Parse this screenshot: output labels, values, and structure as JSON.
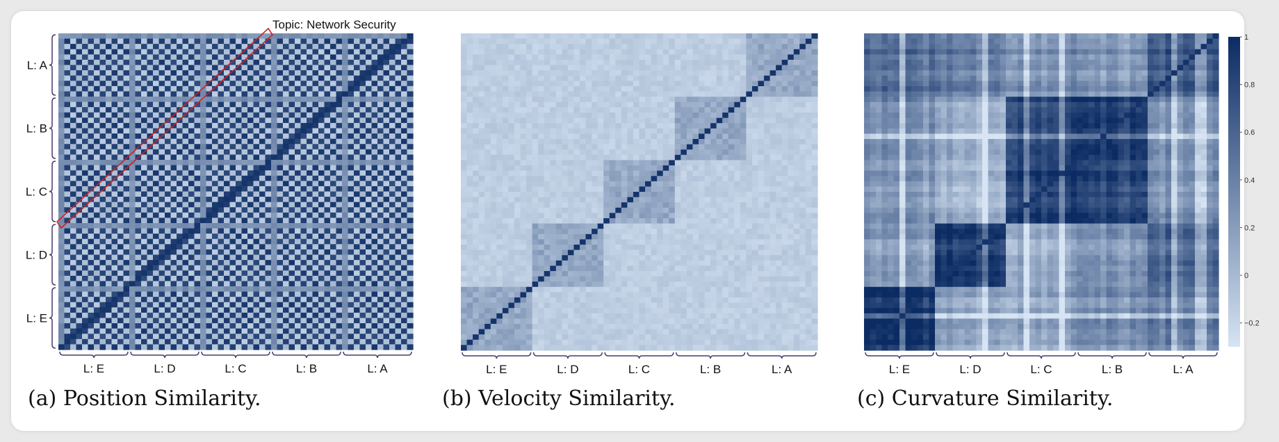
{
  "chart_data": [
    {
      "type": "heatmap",
      "panel": "a",
      "caption": "(a) Position Similarity.",
      "grid_size": 60,
      "group_order": [
        "E",
        "D",
        "C",
        "B",
        "A"
      ],
      "x_tick_labels": [
        "L: E",
        "L: D",
        "L: C",
        "L: B",
        "L: A"
      ],
      "y_tick_labels": [
        "L: A",
        "L: B",
        "L: C",
        "L: D",
        "L: E"
      ],
      "pattern": "checkerboard",
      "annotation": "Topic: Network Security",
      "color_range": [
        -0.3,
        1
      ]
    },
    {
      "type": "heatmap",
      "panel": "b",
      "caption": "(b) Velocity Similarity.",
      "grid_size": 60,
      "group_order": [
        "E",
        "D",
        "C",
        "B",
        "A"
      ],
      "x_tick_labels": [
        "L: E",
        "L: D",
        "L: C",
        "L: B",
        "L: A"
      ],
      "pattern": "diagonal-blocks",
      "color_range": [
        -0.3,
        1
      ]
    },
    {
      "type": "heatmap",
      "panel": "c",
      "caption": "(c) Curvature Similarity.",
      "grid_size": 60,
      "group_order": [
        "E",
        "D",
        "C",
        "B",
        "A"
      ],
      "x_tick_labels": [
        "L: E",
        "L: D",
        "L: C",
        "L: B",
        "L: A"
      ],
      "pattern": "structured-blocks",
      "color_range": [
        -0.3,
        1
      ],
      "colorbar_ticks": [
        "1",
        "0.8",
        "0.6",
        "0.4",
        "0.2",
        "0",
        "−0.2"
      ]
    }
  ],
  "colors": {
    "low": "#d6e4f3",
    "high": "#0b2b63",
    "annotation_box": "#cc2222",
    "axis": "#4a3a6e"
  }
}
